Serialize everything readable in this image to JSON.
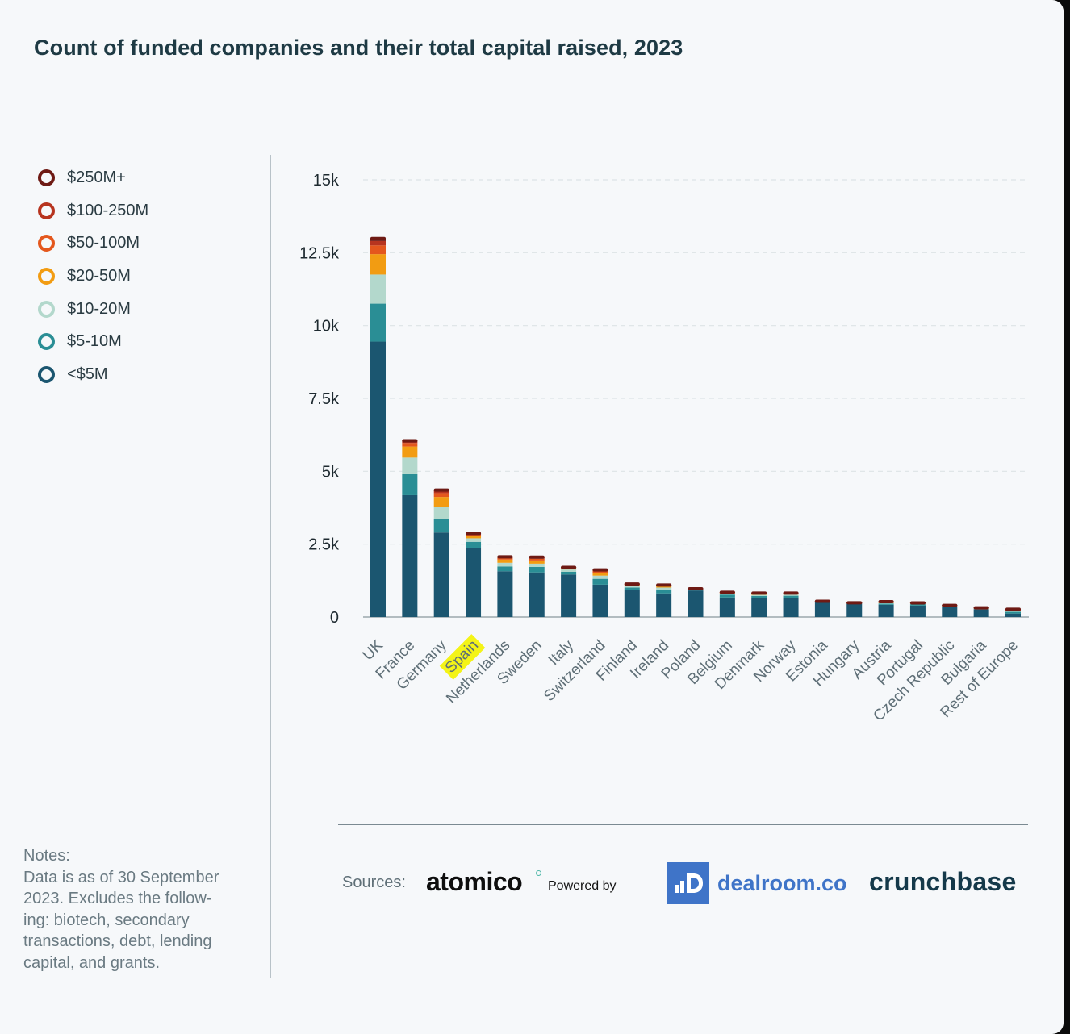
{
  "title": "Count of funded companies and their total capital raised, 2023",
  "notes": {
    "heading": "Notes:",
    "lines": [
      "Data is as of 30 September",
      "2023. Excludes the follow-",
      "ing: biotech, secondary",
      "transactions, debt, lending",
      "capital, and grants."
    ]
  },
  "sources": {
    "label": "Sources:",
    "atomico": "atomico",
    "powered_by": "Powered by",
    "dealroom": "dealroom.co",
    "crunchbase": "crunchbase"
  },
  "colors": {
    "lt5": "#1b5670",
    "5to10": "#2a8e95",
    "10to20": "#b3d8cc",
    "20to50": "#f29c12",
    "50to100": "#e4571d",
    "100to250": "#b7341f",
    "250plus": "#6e1a14",
    "highlight": "#f4f417",
    "axis_text": "#5f6f77",
    "tick_text": "#1e2a30"
  },
  "chart_data": {
    "type": "bar",
    "stacked": true,
    "highlighted_category": "Spain",
    "ylim": [
      0,
      15000
    ],
    "yticks": [
      {
        "value": 0,
        "label": "0"
      },
      {
        "value": 2500,
        "label": "2.5k"
      },
      {
        "value": 5000,
        "label": "5k"
      },
      {
        "value": 7500,
        "label": "7.5k"
      },
      {
        "value": 10000,
        "label": "10k"
      },
      {
        "value": 12500,
        "label": "12.5k"
      },
      {
        "value": 15000,
        "label": "15k"
      }
    ],
    "grid": true,
    "legend_position": "left",
    "categories": [
      "UK",
      "France",
      "Germany",
      "Spain",
      "Netherlands",
      "Sweden",
      "Italy",
      "Switzerland",
      "Finland",
      "Ireland",
      "Poland",
      "Belgium",
      "Denmark",
      "Norway",
      "Estonia",
      "Hungary",
      "Austria",
      "Portugal",
      "Czech Republic",
      "Bulgaria",
      "Rest of Europe"
    ],
    "series": [
      {
        "name": "<$5M",
        "color_key": "lt5",
        "values": [
          9450,
          4180,
          2900,
          2370,
          1570,
          1530,
          1460,
          1110,
          920,
          810,
          910,
          670,
          650,
          660,
          500,
          470,
          420,
          390,
          340,
          260,
          120
        ]
      },
      {
        "name": "$5-10M",
        "color_key": "5to10",
        "values": [
          1300,
          720,
          460,
          210,
          160,
          190,
          90,
          200,
          90,
          130,
          30,
          100,
          70,
          70,
          20,
          10,
          40,
          50,
          30,
          20,
          60
        ]
      },
      {
        "name": "$10-20M",
        "color_key": "10to20",
        "values": [
          1000,
          570,
          420,
          120,
          130,
          110,
          80,
          110,
          60,
          70,
          20,
          40,
          40,
          40,
          10,
          5,
          20,
          20,
          20,
          15,
          20
        ]
      },
      {
        "name": "$20-50M",
        "color_key": "20to50",
        "values": [
          700,
          380,
          340,
          90,
          110,
          110,
          50,
          100,
          40,
          40,
          10,
          20,
          40,
          30,
          10,
          5,
          20,
          20,
          10,
          15,
          20
        ]
      },
      {
        "name": "$50-100M",
        "color_key": "50to100",
        "values": [
          300,
          120,
          130,
          40,
          60,
          60,
          20,
          60,
          20,
          30,
          5,
          15,
          20,
          20,
          5,
          5,
          10,
          10,
          5,
          10,
          30
        ]
      },
      {
        "name": "$100-250M",
        "color_key": "100to250",
        "values": [
          150,
          60,
          70,
          30,
          30,
          40,
          10,
          30,
          10,
          20,
          5,
          10,
          10,
          10,
          5,
          5,
          15,
          5,
          5,
          5,
          20
        ]
      },
      {
        "name": "$250M+",
        "color_key": "250plus",
        "values": [
          100,
          30,
          50,
          20,
          20,
          30,
          5,
          20,
          5,
          10,
          3,
          5,
          5,
          5,
          3,
          3,
          15,
          3,
          3,
          3,
          10
        ]
      }
    ]
  }
}
